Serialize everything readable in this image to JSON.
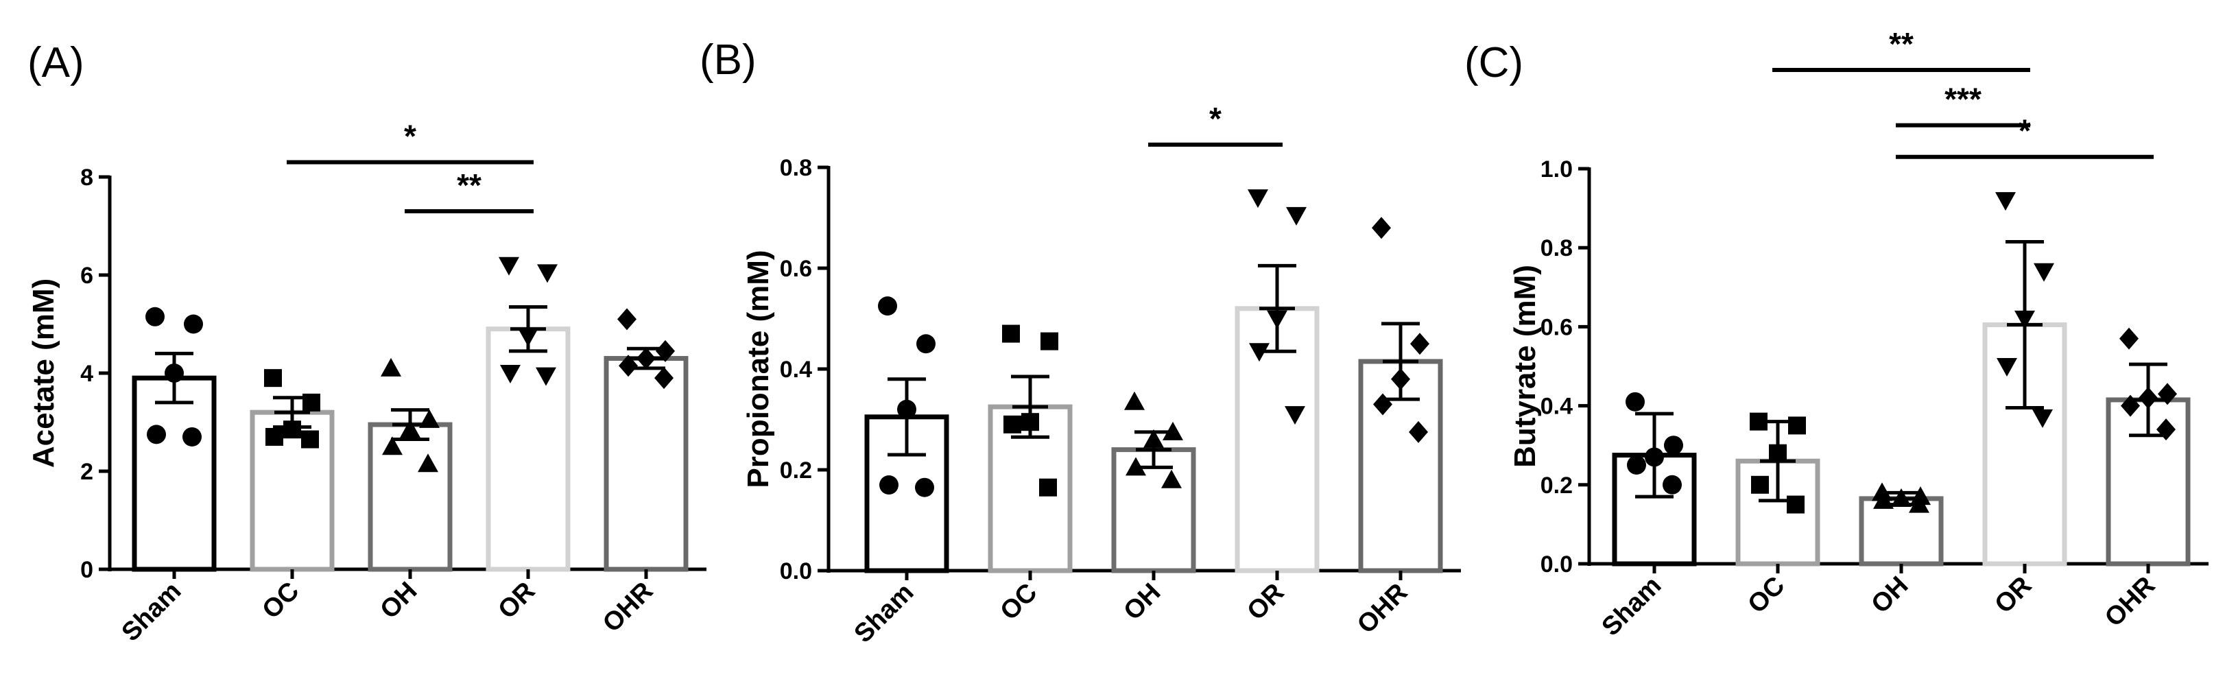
{
  "colors": {
    "axis": "#000000",
    "markers": "#000000",
    "bars": [
      "#000000",
      "#a0a0a0",
      "#6e6e6e",
      "#d2d2d2",
      "#696969"
    ]
  },
  "chart_data": [
    {
      "type": "bar",
      "panel_label": "(A)",
      "categories": [
        "Sham",
        "OC",
        "OH",
        "OR",
        "OHR"
      ],
      "ylabel": "Acetate (mM)",
      "ylim": [
        0,
        8
      ],
      "yticks": [
        0,
        2,
        4,
        6,
        8
      ],
      "ytick_labels": [
        "0",
        "2",
        "4",
        "6",
        "8"
      ],
      "values": [
        3.9,
        3.2,
        2.95,
        4.9,
        4.3
      ],
      "errors": [
        0.5,
        0.3,
        0.3,
        0.45,
        0.2
      ],
      "marker_shapes": [
        "circle",
        "square",
        "triangle-up",
        "triangle-down",
        "diamond"
      ],
      "points": [
        [
          5.15,
          5.0,
          4.0,
          2.75,
          2.7
        ],
        [
          3.9,
          3.4,
          2.85,
          2.7,
          2.65
        ],
        [
          4.1,
          3.05,
          2.85,
          2.5,
          2.15
        ],
        [
          6.2,
          6.05,
          4.75,
          4.0,
          3.95
        ],
        [
          5.1,
          4.45,
          4.3,
          4.15,
          3.9
        ]
      ],
      "significance": [
        {
          "from": 1,
          "to": 3,
          "label": "*",
          "y": 8.3
        },
        {
          "from": 2,
          "to": 3,
          "label": "**",
          "y": 7.3
        }
      ]
    },
    {
      "type": "bar",
      "panel_label": "(B)",
      "categories": [
        "Sham",
        "OC",
        "OH",
        "OR",
        "OHR"
      ],
      "ylabel": "Propionate (mM)",
      "ylim": [
        0,
        0.8
      ],
      "yticks": [
        0,
        0.2,
        0.4,
        0.6,
        0.8
      ],
      "ytick_labels": [
        "0.0",
        "0.2",
        "0.4",
        "0.6",
        "0.8"
      ],
      "values": [
        0.305,
        0.325,
        0.24,
        0.52,
        0.415
      ],
      "errors": [
        0.075,
        0.06,
        0.035,
        0.085,
        0.075
      ],
      "marker_shapes": [
        "circle",
        "square",
        "triangle-up",
        "triangle-down",
        "diamond"
      ],
      "points": [
        [
          0.525,
          0.45,
          0.32,
          0.17,
          0.165
        ],
        [
          0.47,
          0.455,
          0.295,
          0.29,
          0.165
        ],
        [
          0.335,
          0.275,
          0.26,
          0.205,
          0.18
        ],
        [
          0.74,
          0.705,
          0.5,
          0.435,
          0.31
        ],
        [
          0.68,
          0.45,
          0.38,
          0.33,
          0.275
        ]
      ],
      "significance": [
        {
          "from": 2,
          "to": 3,
          "label": "*",
          "y": 0.845
        }
      ]
    },
    {
      "type": "bar",
      "panel_label": "(C)",
      "categories": [
        "Sham",
        "OC",
        "OH",
        "OR",
        "OHR"
      ],
      "ylabel": "Butyrate (mM)",
      "ylim": [
        0,
        1.0
      ],
      "yticks": [
        0,
        0.2,
        0.4,
        0.6,
        0.8,
        1.0
      ],
      "ytick_labels": [
        "0.0",
        "0.2",
        "0.4",
        "0.6",
        "0.8",
        "1.0"
      ],
      "values": [
        0.275,
        0.26,
        0.165,
        0.605,
        0.415
      ],
      "errors": [
        0.105,
        0.1,
        0.015,
        0.21,
        0.09
      ],
      "marker_shapes": [
        "circle",
        "square",
        "triangle-up",
        "triangle-down",
        "diamond"
      ],
      "points": [
        [
          0.41,
          0.3,
          0.27,
          0.25,
          0.2
        ],
        [
          0.36,
          0.35,
          0.28,
          0.2,
          0.15
        ],
        [
          0.18,
          0.17,
          0.165,
          0.16,
          0.15
        ],
        [
          0.92,
          0.74,
          0.62,
          0.5,
          0.37
        ],
        [
          0.57,
          0.43,
          0.42,
          0.4,
          0.34
        ]
      ],
      "significance": [
        {
          "from": 1,
          "to": 3,
          "label": "**",
          "y": 1.25
        },
        {
          "from": 2,
          "to": 3,
          "label": "***",
          "y": 1.11
        },
        {
          "from": 2,
          "to": 4,
          "label": "*",
          "y": 1.03
        }
      ]
    }
  ]
}
